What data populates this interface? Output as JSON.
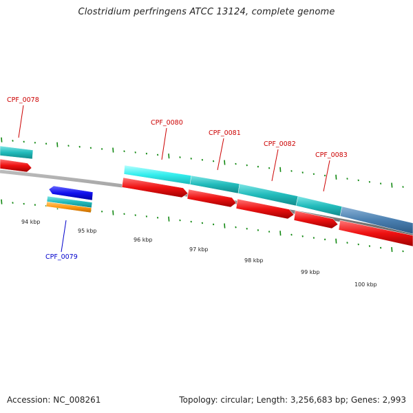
{
  "title": "Clostridium perfringens ATCC 13124, complete genome",
  "footer": {
    "accession": "Accession: NC_008261",
    "summary": "Topology: circular; Length: 3,256,683 bp; Genes: 2,993"
  },
  "ruler_labels": [
    "94 kbp",
    "95 kbp",
    "96 kbp",
    "97 kbp",
    "98 kbp",
    "99 kbp",
    "100 kbp"
  ],
  "gene_labels": [
    {
      "text": "CPF_0078",
      "color": "#cc0000"
    },
    {
      "text": "CPF_0079",
      "color": "#0000cc"
    },
    {
      "text": "CPF_0080",
      "color": "#cc0000"
    },
    {
      "text": "CPF_0081",
      "color": "#cc0000"
    },
    {
      "text": "CPF_0082",
      "color": "#cc0000"
    },
    {
      "text": "CPF_0083",
      "color": "#cc0000"
    }
  ],
  "colors": {
    "forward_cds": "#ee1111",
    "reverse_cds": "#1111ee",
    "cog_teal": "#22bbbb",
    "cog_cyan": "#33eeee",
    "cog_steel": "#4a7fb0",
    "cog_orange": "#ff9911",
    "backbone": "#888888",
    "tick": "#118811"
  }
}
